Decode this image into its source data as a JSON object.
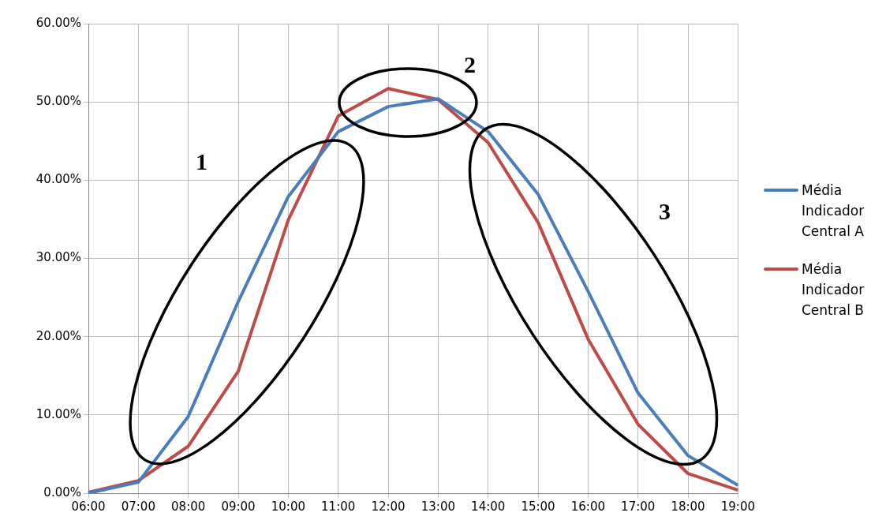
{
  "chart_data": {
    "type": "line",
    "categories": [
      "06:00",
      "07:00",
      "08:00",
      "09:00",
      "10:00",
      "11:00",
      "12:00",
      "13:00",
      "14:00",
      "15:00",
      "16:00",
      "17:00",
      "18:00",
      "19:00"
    ],
    "series": [
      {
        "name": "Média Indicador Central A",
        "color": "#4a7ebb",
        "values": [
          0.0,
          1.4,
          9.8,
          24.5,
          37.9,
          46.2,
          49.4,
          50.4,
          46.2,
          38.2,
          25.8,
          12.8,
          4.8,
          1.0
        ]
      },
      {
        "name": "Média Indicador Central B",
        "color": "#be4b48",
        "values": [
          0.1,
          1.6,
          6.0,
          15.6,
          34.9,
          48.2,
          51.7,
          50.3,
          44.8,
          34.6,
          19.7,
          8.8,
          2.5,
          0.4
        ]
      }
    ],
    "ylim": [
      0,
      60
    ],
    "yticks": [
      {
        "value": 0,
        "label": "0.00%"
      },
      {
        "value": 10,
        "label": "10.00%"
      },
      {
        "value": 20,
        "label": "20.00%"
      },
      {
        "value": 30,
        "label": "30.00%"
      },
      {
        "value": 40,
        "label": "40.00%"
      },
      {
        "value": 50,
        "label": "50.00%"
      },
      {
        "value": 60,
        "label": "60.00%"
      }
    ],
    "grid": true,
    "legend": "right",
    "marker": "none",
    "line_style": "solid",
    "annotations": [
      "1",
      "2",
      "3"
    ]
  }
}
